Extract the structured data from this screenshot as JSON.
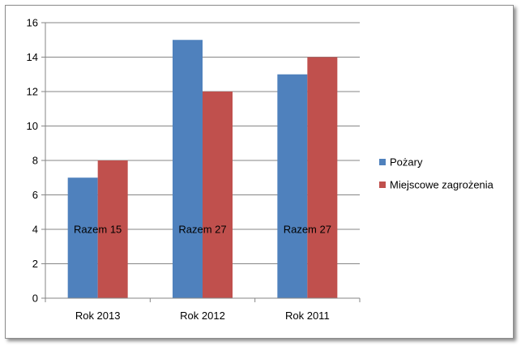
{
  "chart_data": {
    "type": "bar",
    "categories": [
      "Rok 2013",
      "Rok 2012",
      "Rok 2011"
    ],
    "series": [
      {
        "name": "Pożary",
        "values": [
          7,
          15,
          13
        ],
        "color": "#4f81bd"
      },
      {
        "name": "Miejscowe zagrożenia",
        "values": [
          8,
          12,
          14
        ],
        "color": "#c0504d"
      }
    ],
    "annotations": [
      "Razem 15",
      "Razem 27",
      "Razem 27"
    ],
    "yticks": [
      "0",
      "2",
      "4",
      "6",
      "8",
      "10",
      "12",
      "14",
      "16"
    ],
    "ylim": [
      0,
      16
    ],
    "grid": true,
    "legend_position": "right"
  }
}
